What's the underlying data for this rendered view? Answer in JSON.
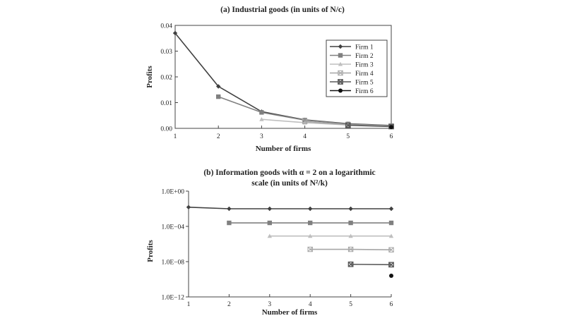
{
  "colors": {
    "series": [
      "#404040",
      "#808080",
      "#bfbfbf",
      "#a6a6a6",
      "#595959",
      "#111111"
    ],
    "axis": "#444444",
    "text": "#222222"
  },
  "chart_data": [
    {
      "type": "line",
      "title": "(a) Industrial goods (in units of N/c)",
      "xlabel": "Number of firms",
      "ylabel": "Profits",
      "xlim": [
        1,
        6
      ],
      "ylim": [
        0,
        0.04
      ],
      "xticks": [
        "1",
        "2",
        "3",
        "4",
        "5",
        "6"
      ],
      "yticks": [
        "0.00",
        "0.01",
        "0.02",
        "0.03",
        "0.04"
      ],
      "legend_position": "top-right",
      "grid": false,
      "series": [
        {
          "name": "Firm 1",
          "marker": "diamond",
          "x": [
            1,
            2,
            3,
            4,
            5,
            6
          ],
          "values": [
            0.037,
            0.0163,
            0.0065,
            0.0033,
            0.0018,
            0.0011
          ]
        },
        {
          "name": "Firm 2",
          "marker": "square",
          "x": [
            2,
            3,
            4,
            5,
            6
          ],
          "values": [
            0.0123,
            0.0062,
            0.0032,
            0.0017,
            0.001
          ]
        },
        {
          "name": "Firm 3",
          "marker": "triangle",
          "x": [
            3,
            4,
            5,
            6
          ],
          "values": [
            0.0035,
            0.0022,
            0.0013,
            0.0008
          ]
        },
        {
          "name": "Firm 4",
          "marker": "box-x",
          "x": [
            4,
            5,
            6
          ],
          "values": [
            0.0027,
            0.0014,
            0.0009
          ]
        },
        {
          "name": "Firm 5",
          "marker": "box-x-bold",
          "x": [
            5,
            6
          ],
          "values": [
            0.0012,
            0.0007
          ]
        },
        {
          "name": "Firm 6",
          "marker": "circle",
          "x": [
            6
          ],
          "values": [
            0.0005
          ]
        }
      ]
    },
    {
      "type": "line",
      "title": "(b) Information goods with α = 2 on a logarithmic scale (in units of N²/k)",
      "title_lines": [
        "(b) Information goods with α = 2 on a logarithmic",
        "scale (in units of N²/k)"
      ],
      "xlabel": "Number of firms",
      "ylabel": "Profits",
      "xlim": [
        1,
        6
      ],
      "ylim": [
        1e-12,
        1
      ],
      "yscale": "log",
      "xticks": [
        "1",
        "2",
        "3",
        "4",
        "5",
        "6"
      ],
      "yticks": [
        "1.0E+00",
        "1.0E−04",
        "1.0E−08",
        "1.0E−12"
      ],
      "grid": false,
      "series": [
        {
          "name": "Firm 1",
          "marker": "diamond",
          "x": [
            1,
            2,
            3,
            4,
            5,
            6
          ],
          "values": [
            0.015,
            0.01,
            0.01,
            0.01,
            0.01,
            0.01
          ]
        },
        {
          "name": "Firm 2",
          "marker": "square",
          "x": [
            2,
            3,
            4,
            5,
            6
          ],
          "values": [
            0.00025,
            0.00025,
            0.00025,
            0.00025,
            0.00025
          ]
        },
        {
          "name": "Firm 3",
          "marker": "triangle",
          "x": [
            3,
            4,
            5,
            6
          ],
          "values": [
            8e-06,
            8e-06,
            8e-06,
            8e-06
          ]
        },
        {
          "name": "Firm 4",
          "marker": "box-x",
          "x": [
            4,
            5,
            6
          ],
          "values": [
            2.5e-07,
            2.5e-07,
            2.2e-07
          ]
        },
        {
          "name": "Firm 5",
          "marker": "box-x-bold",
          "x": [
            5,
            6
          ],
          "values": [
            5e-09,
            4.5e-09
          ]
        },
        {
          "name": "Firm 6",
          "marker": "circle",
          "x": [
            6
          ],
          "values": [
            2.5e-10
          ]
        }
      ]
    }
  ]
}
